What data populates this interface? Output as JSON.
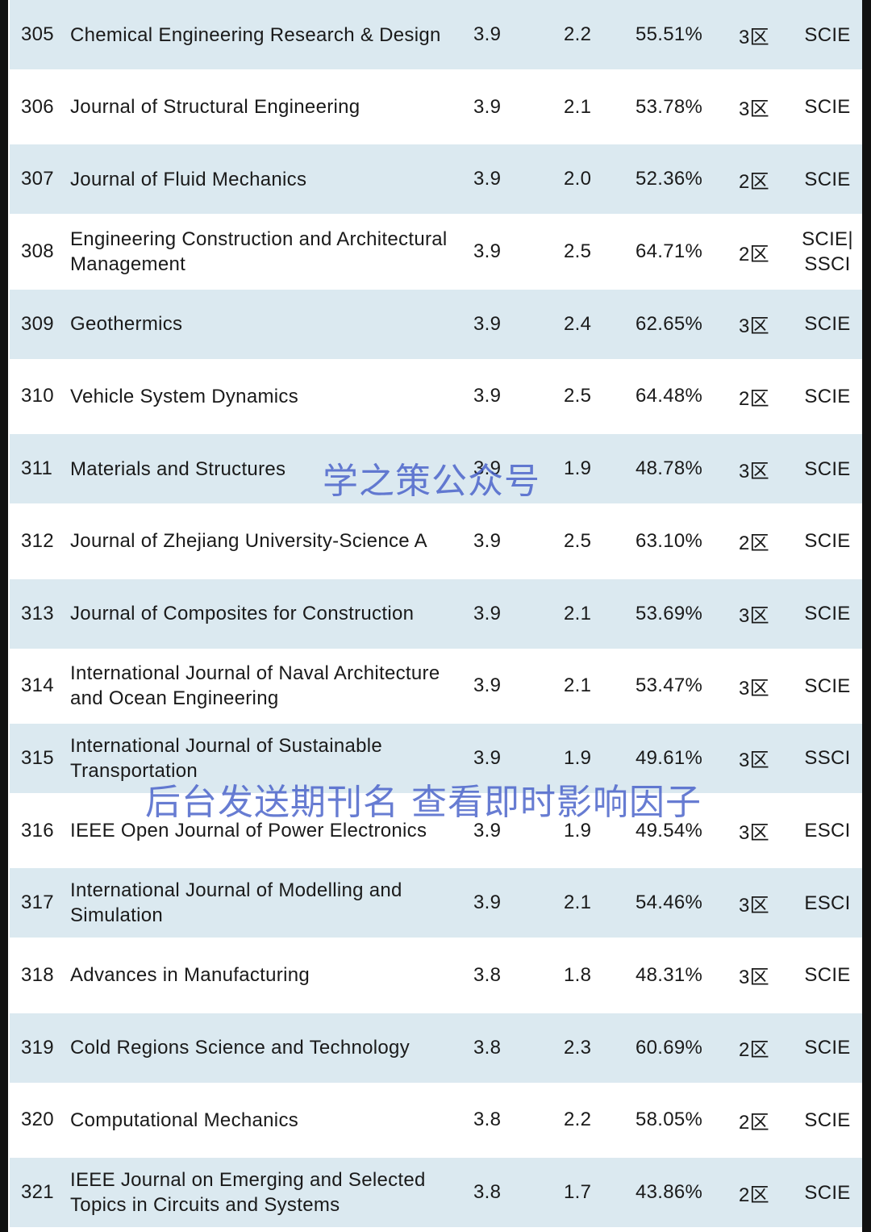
{
  "rows": [
    {
      "rank": "305",
      "title": "Chemical Engineering Research & Design",
      "if": "3.9",
      "cs": "2.2",
      "pct": "55.51%",
      "zone": "3区",
      "index": "SCIE"
    },
    {
      "rank": "306",
      "title": "Journal of Structural Engineering",
      "if": "3.9",
      "cs": "2.1",
      "pct": "53.78%",
      "zone": "3区",
      "index": "SCIE"
    },
    {
      "rank": "307",
      "title": "Journal of Fluid Mechanics",
      "if": "3.9",
      "cs": "2.0",
      "pct": "52.36%",
      "zone": "2区",
      "index": "SCIE"
    },
    {
      "rank": "308",
      "title": "Engineering Construction and Architectural Management",
      "if": "3.9",
      "cs": "2.5",
      "pct": "64.71%",
      "zone": "2区",
      "index": "SCIE| SSCI"
    },
    {
      "rank": "309",
      "title": "Geothermics",
      "if": "3.9",
      "cs": "2.4",
      "pct": "62.65%",
      "zone": "3区",
      "index": "SCIE"
    },
    {
      "rank": "310",
      "title": "Vehicle System Dynamics",
      "if": "3.9",
      "cs": "2.5",
      "pct": "64.48%",
      "zone": "2区",
      "index": "SCIE"
    },
    {
      "rank": "311",
      "title": "Materials and Structures",
      "if": "3.9",
      "cs": "1.9",
      "pct": "48.78%",
      "zone": "3区",
      "index": "SCIE"
    },
    {
      "rank": "312",
      "title": "Journal of Zhejiang University-Science A",
      "if": "3.9",
      "cs": "2.5",
      "pct": "63.10%",
      "zone": "2区",
      "index": "SCIE"
    },
    {
      "rank": "313",
      "title": "Journal of Composites for Construction",
      "if": "3.9",
      "cs": "2.1",
      "pct": "53.69%",
      "zone": "3区",
      "index": "SCIE"
    },
    {
      "rank": "314",
      "title": "International Journal of Naval Architecture and Ocean Engineering",
      "if": "3.9",
      "cs": "2.1",
      "pct": "53.47%",
      "zone": "3区",
      "index": "SCIE"
    },
    {
      "rank": "315",
      "title": "International Journal of Sustainable Transportation",
      "if": "3.9",
      "cs": "1.9",
      "pct": "49.61%",
      "zone": "3区",
      "index": "SSCI"
    },
    {
      "rank": "316",
      "title": "IEEE Open Journal of Power Electronics",
      "if": "3.9",
      "cs": "1.9",
      "pct": "49.54%",
      "zone": "3区",
      "index": "ESCI"
    },
    {
      "rank": "317",
      "title": "International Journal of Modelling and Simulation",
      "if": "3.9",
      "cs": "2.1",
      "pct": "54.46%",
      "zone": "3区",
      "index": "ESCI"
    },
    {
      "rank": "318",
      "title": "Advances in Manufacturing",
      "if": "3.8",
      "cs": "1.8",
      "pct": "48.31%",
      "zone": "3区",
      "index": "SCIE"
    },
    {
      "rank": "319",
      "title": "Cold Regions Science and Technology",
      "if": "3.8",
      "cs": "2.3",
      "pct": "60.69%",
      "zone": "2区",
      "index": "SCIE"
    },
    {
      "rank": "320",
      "title": "Computational Mechanics",
      "if": "3.8",
      "cs": "2.2",
      "pct": "58.05%",
      "zone": "2区",
      "index": "SCIE"
    },
    {
      "rank": "321",
      "title": "IEEE Journal on Emerging and Selected Topics in Circuits and Systems",
      "if": "3.8",
      "cs": "1.7",
      "pct": "43.86%",
      "zone": "2区",
      "index": "SCIE"
    }
  ],
  "watermarks": {
    "first": "学之策公众号",
    "second": "后台发送期刊名 查看即时影响因子"
  },
  "colors": {
    "shaded_row": "#dbe9f0",
    "plain_row": "#ffffff",
    "watermark": "#465fc8"
  }
}
